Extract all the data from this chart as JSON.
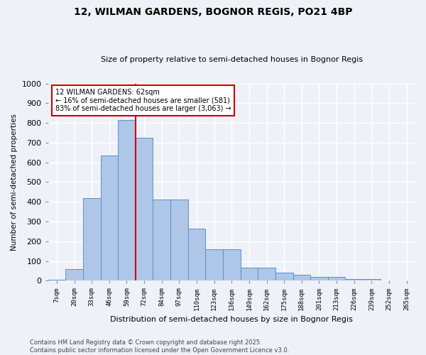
{
  "title1": "12, WILMAN GARDENS, BOGNOR REGIS, PO21 4BP",
  "title2": "Size of property relative to semi-detached houses in Bognor Regis",
  "xlabel": "Distribution of semi-detached houses by size in Bognor Regis",
  "ylabel": "Number of semi-detached properties",
  "categories": [
    "7sqm",
    "20sqm",
    "33sqm",
    "46sqm",
    "59sqm",
    "72sqm",
    "84sqm",
    "97sqm",
    "110sqm",
    "123sqm",
    "136sqm",
    "149sqm",
    "162sqm",
    "175sqm",
    "188sqm",
    "201sqm",
    "213sqm",
    "226sqm",
    "239sqm",
    "252sqm",
    "265sqm"
  ],
  "values": [
    5,
    60,
    420,
    635,
    815,
    725,
    410,
    410,
    265,
    160,
    160,
    65,
    65,
    40,
    30,
    20,
    20,
    10,
    10,
    2,
    2
  ],
  "bar_color": "#aec6e8",
  "bar_edge_color": "#5b8fc9",
  "vline_x": 4.5,
  "vline_color": "#cc0000",
  "annotation_line1": "12 WILMAN GARDENS: 62sqm",
  "annotation_line2": "← 16% of semi-detached houses are smaller (581)",
  "annotation_line3": "83% of semi-detached houses are larger (3,063) →",
  "annotation_box_color": "#ffffff",
  "annotation_box_edge": "#cc0000",
  "ylim": [
    0,
    1000
  ],
  "yticks": [
    0,
    100,
    200,
    300,
    400,
    500,
    600,
    700,
    800,
    900,
    1000
  ],
  "footer1": "Contains HM Land Registry data © Crown copyright and database right 2025.",
  "footer2": "Contains public sector information licensed under the Open Government Licence v3.0.",
  "bg_color": "#eef2f8",
  "grid_color": "#ffffff"
}
